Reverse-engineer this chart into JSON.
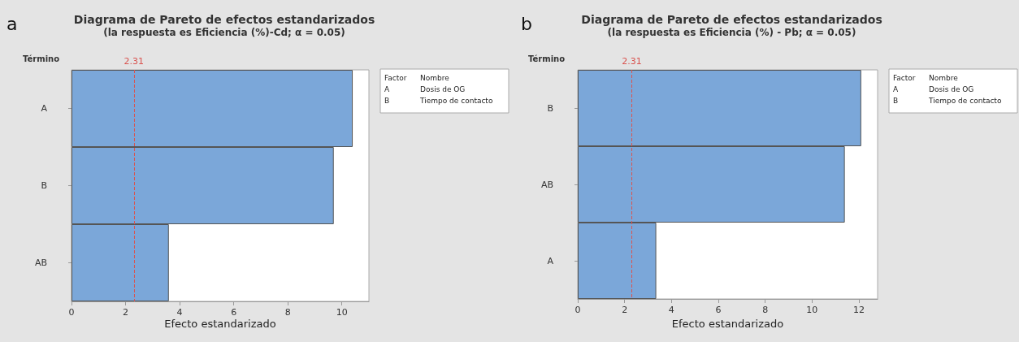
{
  "chart_data": [
    {
      "type": "bar",
      "orientation": "horizontal",
      "title": "Diagrama de Pareto de efectos estandarizados",
      "subtitle": "(la respuesta es Eficiencia (%)-Cd; α = 0.05)",
      "xlabel": "Efecto estandarizado",
      "ylabel": "Término",
      "categories": [
        "A",
        "B",
        "AB"
      ],
      "values": [
        10.4,
        9.7,
        3.6
      ],
      "color": "#7ba7d9",
      "xlim": [
        0,
        11
      ],
      "xticks": [
        0,
        2,
        4,
        6,
        8,
        10
      ],
      "grid": false,
      "ref_lines": [
        {
          "axis": "x",
          "value": 2.31,
          "label": "2.31",
          "color": "#d9534f",
          "line_style": "dashed"
        }
      ],
      "annotations": [
        "a",
        "Factor",
        "Nombre",
        "A",
        "Dosis de OG",
        "B",
        "Tiempo de contacto"
      ]
    },
    {
      "type": "bar",
      "orientation": "horizontal",
      "title": "Diagrama de Pareto de efectos estandarizados",
      "subtitle": "(la respuesta es Eficiencia (%) - Pb; α = 0.05)",
      "xlabel": "Efecto estandarizado",
      "ylabel": "Término",
      "categories": [
        "B",
        "AB",
        "A"
      ],
      "values": [
        12.1,
        11.4,
        3.35
      ],
      "color": "#7ba7d9",
      "xlim": [
        0,
        12.8
      ],
      "xticks": [
        0,
        2,
        4,
        6,
        8,
        10,
        12
      ],
      "grid": false,
      "ref_lines": [
        {
          "axis": "x",
          "value": 2.31,
          "label": "2.31",
          "color": "#d9534f",
          "line_style": "dashed"
        }
      ],
      "annotations": [
        "b",
        "Factor",
        "Nombre",
        "A",
        "Dosis de OG",
        "B",
        "Tiempo de contacto"
      ]
    }
  ]
}
